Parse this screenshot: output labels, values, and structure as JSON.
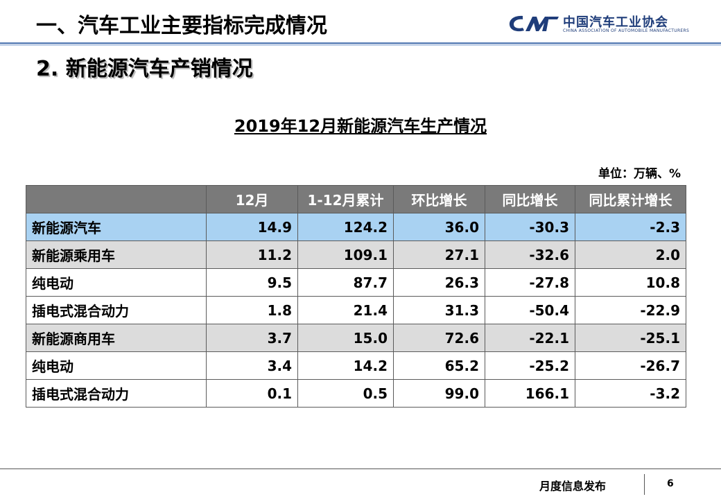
{
  "header": {
    "title": "一、汽车工业主要指标完成情况",
    "logo_cn": "中国汽车工业协会",
    "logo_en": "CHINA ASSOCIATION OF AUTOMOBILE MANUFACTURERS",
    "logo_mark": "CAM"
  },
  "subtitle": "2. 新能源汽车产销情况",
  "table": {
    "title": "2019年12月新能源汽车生产情况",
    "unit": "单位：万辆、%",
    "columns": [
      "",
      "12月",
      "1-12月累计",
      "环比增长",
      "同比增长",
      "同比累计增长"
    ],
    "rows": [
      {
        "label": "新能源汽车",
        "values": [
          "14.9",
          "124.2",
          "36.0",
          "-30.3",
          "-2.3"
        ]
      },
      {
        "label": "新能源乘用车",
        "values": [
          "11.2",
          "109.1",
          "27.1",
          "-32.6",
          "2.0"
        ]
      },
      {
        "label": "纯电动",
        "values": [
          "9.5",
          "87.7",
          "26.3",
          "-27.8",
          "10.8"
        ]
      },
      {
        "label": "插电式混合动力",
        "values": [
          "1.8",
          "21.4",
          "31.3",
          "-50.4",
          "-22.9"
        ]
      },
      {
        "label": "新能源商用车",
        "values": [
          "3.7",
          "15.0",
          "72.6",
          "-22.1",
          "-25.1"
        ]
      },
      {
        "label": "纯电动",
        "values": [
          "3.4",
          "14.2",
          "65.2",
          "-25.2",
          "-26.7"
        ]
      },
      {
        "label": "插电式混合动力",
        "values": [
          "0.1",
          "0.5",
          "99.0",
          "166.1",
          "-3.2"
        ]
      }
    ]
  },
  "footer": {
    "text": "月度信息发布",
    "page": "6"
  },
  "colors": {
    "header_row": "#7a7a7a",
    "highlight_row": "#a9d2f2",
    "category_row": "#dcdcdc",
    "brand_blue": "#1f3d7a"
  }
}
